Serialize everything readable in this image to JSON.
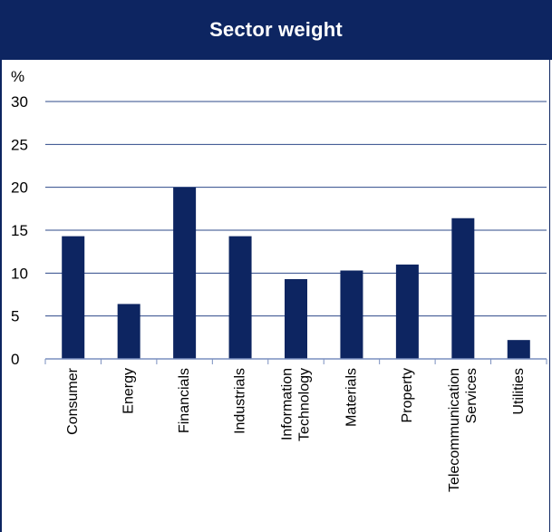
{
  "chart_data": {
    "type": "bar",
    "title": "Sector weight",
    "unit_label": "%",
    "categories": [
      [
        "Consumer"
      ],
      [
        "Energy"
      ],
      [
        "Financials"
      ],
      [
        "Industrials"
      ],
      [
        "Information",
        "Technology"
      ],
      [
        "Materials"
      ],
      [
        "Property"
      ],
      [
        "Telecommunication",
        "Services"
      ],
      [
        "Utilities"
      ]
    ],
    "values": [
      14.3,
      6.4,
      20.0,
      14.3,
      9.3,
      10.3,
      11.0,
      16.4,
      2.2
    ],
    "yticks": [
      "0",
      "5",
      "10",
      "15",
      "20",
      "25",
      "30"
    ],
    "ylim": [
      0,
      30
    ],
    "grid": true,
    "colors": {
      "bar": "#0d2561",
      "title_bg": "#0d2561",
      "grid": "#2e4a8a",
      "axis": "#7a8fbf"
    }
  }
}
